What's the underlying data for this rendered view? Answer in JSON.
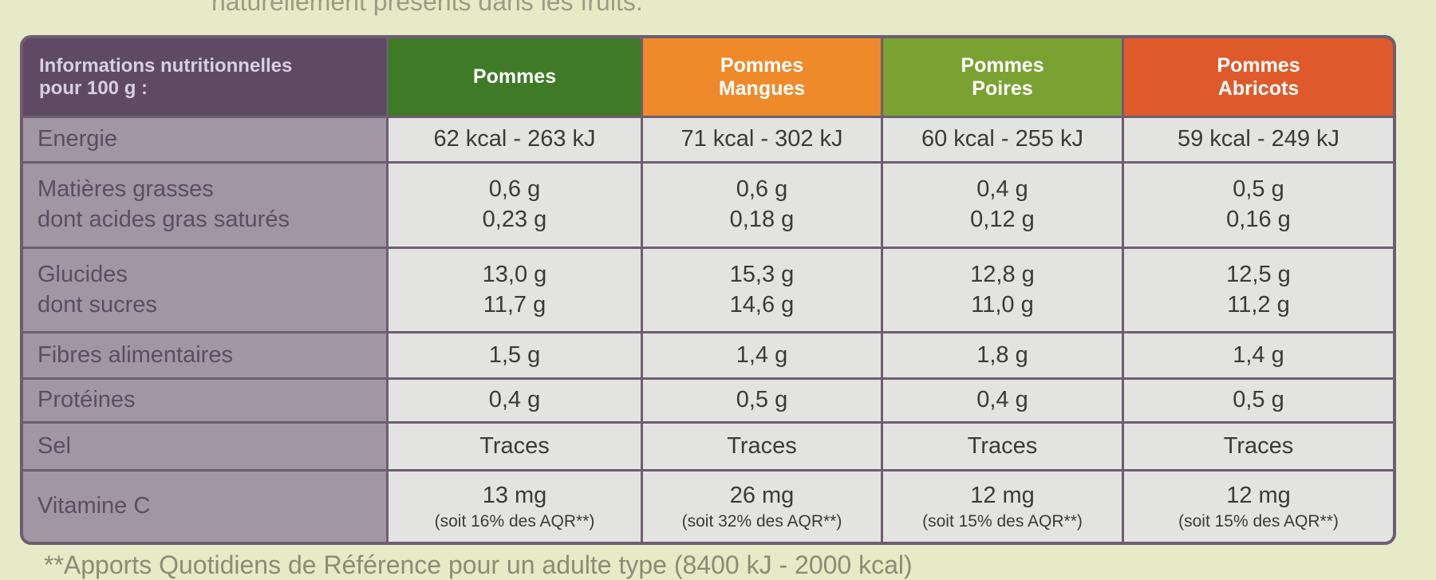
{
  "top_text": "naturellement présents dans les fruits.",
  "table": {
    "header": [
      [
        "Informations nutritionnelles",
        "pour 100 g :"
      ],
      [
        "Pommes"
      ],
      [
        "Pommes",
        "Mangues"
      ],
      [
        "Pommes",
        "Poires"
      ],
      [
        "Pommes",
        "Abricots"
      ]
    ],
    "rows": [
      {
        "label": [
          "Energie"
        ],
        "values": [
          [
            "62 kcal - 263 kJ"
          ],
          [
            "71 kcal - 302 kJ"
          ],
          [
            "60 kcal - 255 kJ"
          ],
          [
            "59 kcal - 249 kJ"
          ]
        ]
      },
      {
        "label": [
          "Matières grasses",
          "dont acides gras saturés"
        ],
        "values": [
          [
            "0,6 g",
            "0,23 g"
          ],
          [
            "0,6 g",
            "0,18 g"
          ],
          [
            "0,4 g",
            "0,12 g"
          ],
          [
            "0,5 g",
            "0,16 g"
          ]
        ]
      },
      {
        "label": [
          "Glucides",
          "dont sucres"
        ],
        "values": [
          [
            "13,0 g",
            "11,7 g"
          ],
          [
            "15,3 g",
            "14,6 g"
          ],
          [
            "12,8 g",
            "11,0 g"
          ],
          [
            "12,5 g",
            "11,2 g"
          ]
        ]
      },
      {
        "label": [
          "Fibres alimentaires"
        ],
        "values": [
          [
            "1,5 g"
          ],
          [
            "1,4 g"
          ],
          [
            "1,8 g"
          ],
          [
            "1,4 g"
          ]
        ]
      },
      {
        "label": [
          "Protéines"
        ],
        "values": [
          [
            "0,4 g"
          ],
          [
            "0,5 g"
          ],
          [
            "0,4 g"
          ],
          [
            "0,5 g"
          ]
        ]
      },
      {
        "label": [
          "Sel"
        ],
        "values": [
          [
            "Traces"
          ],
          [
            "Traces"
          ],
          [
            "Traces"
          ],
          [
            "Traces"
          ]
        ]
      },
      {
        "label": [
          "Vitamine C"
        ],
        "values": [
          [
            "13 mg",
            "(soit 16% des AQR**)"
          ],
          [
            "26 mg",
            "(soit 32% des AQR**)"
          ],
          [
            "12 mg",
            "(soit 15% des AQR**)"
          ],
          [
            "12 mg",
            "(soit 15% des AQR**)"
          ]
        ]
      }
    ]
  },
  "footnote": "**Apports Quotidiens de Référence pour un adulte type (8400 kJ - 2000 kcal)"
}
